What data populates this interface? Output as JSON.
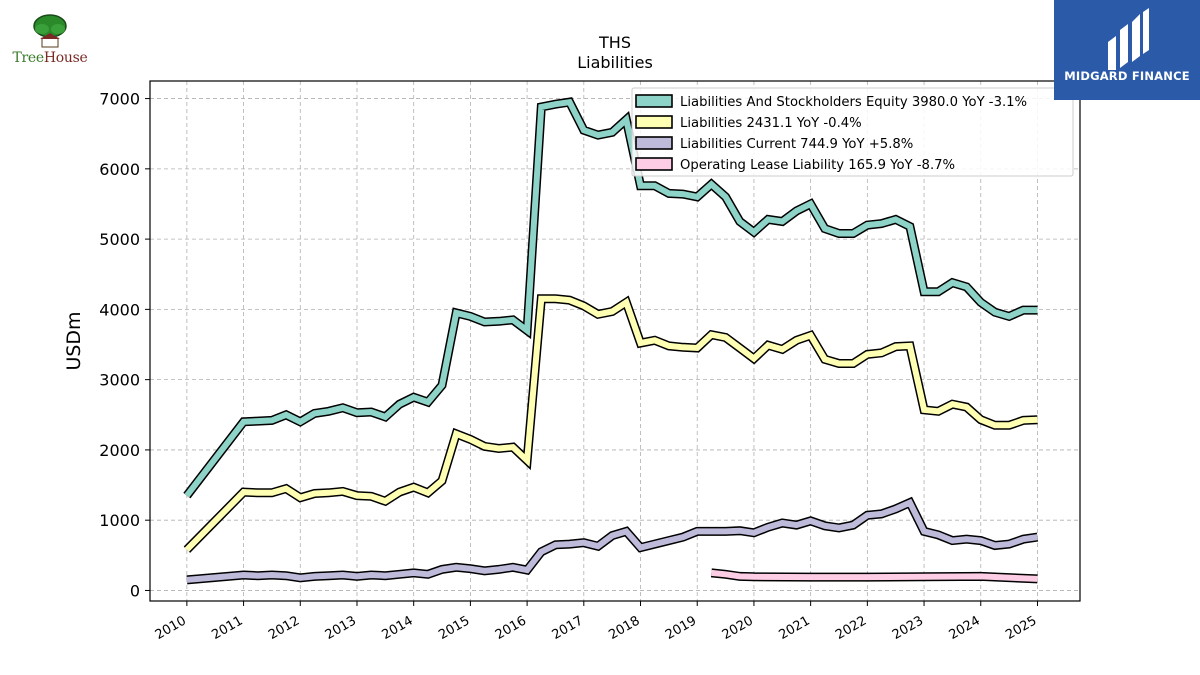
{
  "logos": {
    "left_word1": "Tree",
    "left_word2": "House",
    "right_name": "MIDGARD FINANCE"
  },
  "colors": {
    "Liabilities And Stockholders Equity": "#8dd3c7",
    "Liabilities": "#ffffb3",
    "Liabilities Current": "#bebada",
    "Operating Lease Liability": "#fccde5",
    "outline": "#000000",
    "grid": "#b0b0b0",
    "logo_right_bg": "#2b5aa8"
  },
  "chart_data": {
    "type": "line",
    "title": "THS",
    "subtitle": "Liabilities",
    "ylabel": "USDm",
    "xlabel": "",
    "xlim": [
      2009.35,
      2025.75
    ],
    "ylim": [
      -150,
      7250
    ],
    "yticks": [
      0,
      1000,
      2000,
      3000,
      4000,
      5000,
      6000,
      7000
    ],
    "xticks": [
      "2010",
      "2011",
      "2012",
      "2013",
      "2014",
      "2015",
      "2016",
      "2017",
      "2018",
      "2019",
      "2020",
      "2021",
      "2022",
      "2023",
      "2024",
      "2025"
    ],
    "grid": true,
    "legend_position": "top-right",
    "legend": [
      "Liabilities And Stockholders Equity  3980.0 YoY -3.1%",
      "Liabilities  2431.1 YoY -0.4%",
      "Liabilities Current  744.9 YoY +5.8%",
      "Operating Lease Liability  165.9 YoY -8.7%"
    ],
    "series": [
      {
        "name": "Liabilities And Stockholders Equity",
        "x": [
          2010.0,
          2011.0,
          2011.25,
          2011.5,
          2011.75,
          2012.0,
          2012.25,
          2012.5,
          2012.75,
          2013.0,
          2013.25,
          2013.5,
          2013.75,
          2014.0,
          2014.25,
          2014.5,
          2014.75,
          2015.0,
          2015.25,
          2015.5,
          2015.75,
          2016.0,
          2016.25,
          2016.5,
          2016.75,
          2017.0,
          2017.25,
          2017.5,
          2017.75,
          2018.0,
          2018.25,
          2018.5,
          2018.75,
          2019.0,
          2019.25,
          2019.5,
          2019.75,
          2020.0,
          2020.25,
          2020.5,
          2020.75,
          2021.0,
          2021.25,
          2021.5,
          2021.75,
          2022.0,
          2022.25,
          2022.5,
          2022.75,
          2023.0,
          2023.25,
          2023.5,
          2023.75,
          2024.0,
          2024.25,
          2024.5,
          2024.75,
          2025.0
        ],
        "y": [
          1350,
          2400,
          2410,
          2420,
          2500,
          2400,
          2520,
          2550,
          2600,
          2530,
          2540,
          2470,
          2650,
          2750,
          2680,
          2920,
          3950,
          3900,
          3820,
          3830,
          3850,
          3700,
          6880,
          6920,
          6950,
          6550,
          6480,
          6520,
          6700,
          5760,
          5760,
          5650,
          5640,
          5600,
          5780,
          5600,
          5250,
          5100,
          5280,
          5250,
          5400,
          5500,
          5150,
          5080,
          5080,
          5200,
          5220,
          5280,
          5180,
          4250,
          4250,
          4380,
          4320,
          4100,
          3960,
          3900,
          3990,
          3990
        ]
      },
      {
        "name": "Liabilities",
        "x": [
          2010.0,
          2011.0,
          2011.25,
          2011.5,
          2011.75,
          2012.0,
          2012.25,
          2012.5,
          2012.75,
          2013.0,
          2013.25,
          2013.5,
          2013.75,
          2014.0,
          2014.25,
          2014.5,
          2014.75,
          2015.0,
          2015.25,
          2015.5,
          2015.75,
          2016.0,
          2016.25,
          2016.5,
          2016.75,
          2017.0,
          2017.25,
          2017.5,
          2017.75,
          2018.0,
          2018.25,
          2018.5,
          2018.75,
          2019.0,
          2019.25,
          2019.5,
          2019.75,
          2020.0,
          2020.25,
          2020.5,
          2020.75,
          2021.0,
          2021.25,
          2021.5,
          2021.75,
          2022.0,
          2022.25,
          2022.5,
          2022.75,
          2023.0,
          2023.25,
          2023.5,
          2023.75,
          2024.0,
          2024.25,
          2024.5,
          2024.75,
          2025.0
        ],
        "y": [
          580,
          1400,
          1390,
          1390,
          1450,
          1320,
          1380,
          1390,
          1410,
          1350,
          1340,
          1270,
          1400,
          1470,
          1390,
          1560,
          2230,
          2150,
          2050,
          2020,
          2040,
          1850,
          4150,
          4150,
          4130,
          4050,
          3930,
          3970,
          4100,
          3520,
          3560,
          3480,
          3460,
          3450,
          3640,
          3600,
          3450,
          3300,
          3490,
          3430,
          3560,
          3630,
          3290,
          3230,
          3230,
          3360,
          3380,
          3470,
          3480,
          2570,
          2550,
          2650,
          2610,
          2430,
          2350,
          2350,
          2420,
          2430
        ]
      },
      {
        "name": "Liabilities Current",
        "x": [
          2010.0,
          2011.0,
          2011.25,
          2011.5,
          2011.75,
          2012.0,
          2012.25,
          2012.5,
          2012.75,
          2013.0,
          2013.25,
          2013.5,
          2013.75,
          2014.0,
          2014.25,
          2014.5,
          2014.75,
          2015.0,
          2015.25,
          2015.5,
          2015.75,
          2016.0,
          2016.25,
          2016.5,
          2016.75,
          2017.0,
          2017.25,
          2017.5,
          2017.75,
          2018.0,
          2018.25,
          2018.5,
          2018.75,
          2019.0,
          2019.25,
          2019.5,
          2019.75,
          2020.0,
          2020.25,
          2020.5,
          2020.75,
          2021.0,
          2021.25,
          2021.5,
          2021.75,
          2022.0,
          2022.25,
          2022.5,
          2022.75,
          2023.0,
          2023.25,
          2023.5,
          2023.75,
          2024.0,
          2024.25,
          2024.5,
          2024.75,
          2025.0
        ],
        "y": [
          150,
          220,
          210,
          220,
          210,
          180,
          200,
          210,
          220,
          200,
          220,
          210,
          230,
          250,
          230,
          300,
          330,
          310,
          280,
          300,
          330,
          290,
          550,
          650,
          660,
          680,
          630,
          780,
          840,
          610,
          660,
          710,
          760,
          840,
          840,
          840,
          850,
          820,
          900,
          960,
          930,
          990,
          920,
          890,
          930,
          1070,
          1090,
          1160,
          1250,
          840,
          790,
          710,
          730,
          710,
          640,
          660,
          730,
          760
        ]
      },
      {
        "name": "Operating Lease Liability",
        "x": [
          2019.25,
          2019.5,
          2019.75,
          2020.0,
          2021.0,
          2022.0,
          2023.0,
          2024.0,
          2025.0
        ],
        "y": [
          250,
          230,
          200,
          195,
          190,
          190,
          195,
          200,
          165
        ]
      }
    ]
  }
}
